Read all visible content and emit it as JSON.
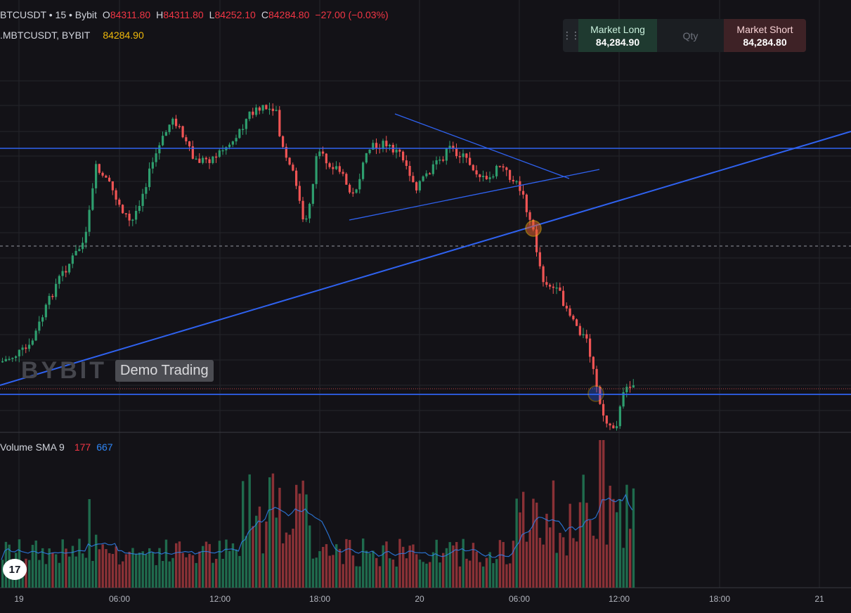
{
  "legend": {
    "symbol": "BTCUSDT • 15 • Bybit",
    "open_label": "O",
    "open": "84311.80",
    "high_label": "H",
    "high": "84311.80",
    "low_label": "L",
    "low": "84252.10",
    "close_label": "C",
    "close": "84284.80",
    "change": "−27.00 (−0.03%)",
    "secondary_symbol": ".MBTCUSDT, BYBIT",
    "secondary_price": "84284.90"
  },
  "trade_panel": {
    "long_label": "Market Long",
    "long_price": "84,284.90",
    "qty_placeholder": "Qty",
    "short_label": "Market Short",
    "short_price": "84,284.80"
  },
  "watermark": {
    "logo": "BYBIT",
    "badge": "Demo Trading"
  },
  "volume_legend": {
    "title": "Volume SMA 9",
    "value_red": "177",
    "value_blue": "667"
  },
  "time_axis": [
    "19",
    "06:00",
    "12:00",
    "18:00",
    "20",
    "06:00",
    "12:00",
    "18:00",
    "21"
  ],
  "colors": {
    "up": "#2e9e6e",
    "down": "#f05454",
    "line": "#2f62f0",
    "background": "#131217",
    "grid": "#24252b"
  },
  "chart_data": {
    "type": "candlestick",
    "interval": "15m",
    "horizontal_levels_relative": [
      "resistance",
      "current_price_dotted",
      "dashed_mid",
      "support"
    ],
    "close_trend": [
      84600,
      84900,
      85400,
      86200,
      86700,
      86500,
      86200,
      86700,
      86600,
      87000,
      86900,
      87100,
      86400,
      85600,
      86200,
      86500,
      86000,
      86300,
      86400,
      86000,
      86100,
      86500,
      86300,
      86300,
      86000,
      84600,
      84100,
      83700,
      83400,
      83100,
      84284.8
    ],
    "volume_trend": [
      120,
      200,
      320,
      250,
      200,
      260,
      240,
      300,
      400,
      300,
      320,
      480,
      500,
      380,
      260,
      220,
      190,
      170,
      160,
      150,
      140,
      130,
      200,
      320,
      700,
      650,
      420,
      300,
      380,
      980,
      667
    ]
  }
}
